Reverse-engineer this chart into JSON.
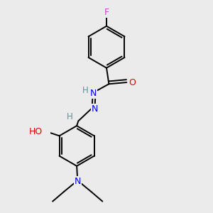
{
  "background_color": "#ebebeb",
  "atom_colors": {
    "C": "#000000",
    "H": "#4a9a9a",
    "N": "#0000ee",
    "O": "#dd0000",
    "F": "#cc44cc"
  },
  "bond_color": "#000000",
  "bond_width": 1.4,
  "fig_size": [
    3.0,
    3.0
  ],
  "dpi": 100
}
